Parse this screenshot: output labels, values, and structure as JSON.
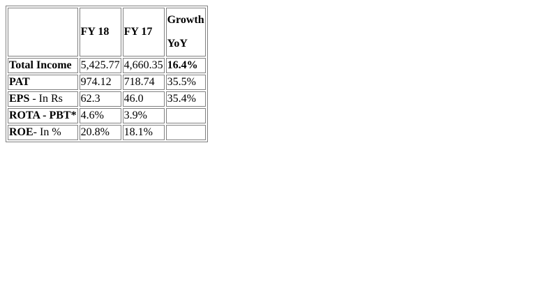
{
  "table": {
    "header": {
      "label": "",
      "fy18": "FY 18",
      "fy17": "FY 17",
      "growth_line1": "Growth",
      "growth_line2": "YoY"
    },
    "rows": [
      {
        "label_bold": "Total Income",
        "label_rest": "",
        "fy18": "5,425.77",
        "fy17": "4,660.35",
        "growth": "16.4%",
        "growth_bold": true
      },
      {
        "label_bold": "PAT",
        "label_rest": "",
        "fy18": "974.12",
        "fy17": "718.74",
        "growth": "35.5%",
        "growth_bold": false
      },
      {
        "label_bold": "EPS",
        "label_rest": " - In Rs",
        "fy18": "62.3",
        "fy17": "46.0",
        "growth": "35.4%",
        "growth_bold": false
      },
      {
        "label_bold": "ROTA - PBT*",
        "label_rest": "",
        "fy18": "4.6%",
        "fy17": "3.9%",
        "growth": "",
        "growth_bold": false
      },
      {
        "label_bold": "ROE",
        "label_rest": "- In %",
        "fy18": "20.8%",
        "fy17": "18.1%",
        "growth": "",
        "growth_bold": false
      }
    ]
  }
}
